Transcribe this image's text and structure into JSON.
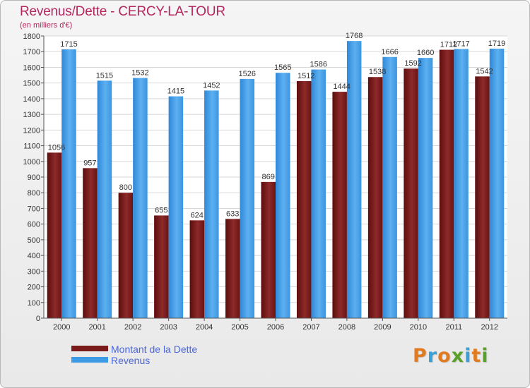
{
  "header": {
    "title": "Revenus/Dette - CERCY-LA-TOUR",
    "subtitle": "(en milliers d'€)"
  },
  "colors": {
    "title": "#b5265e",
    "dette": "#7a1a1a",
    "revenus": "#3d9be6",
    "legend_text": "#4a66d8"
  },
  "chart_data": {
    "type": "bar",
    "categories": [
      "2000",
      "2001",
      "2002",
      "2003",
      "2004",
      "2005",
      "2006",
      "2007",
      "2008",
      "2009",
      "2010",
      "2011",
      "2012"
    ],
    "series": [
      {
        "name": "Montant de la Dette",
        "values": [
          1056,
          957,
          800,
          655,
          624,
          633,
          869,
          1512,
          1444,
          1538,
          1592,
          1712,
          1542
        ]
      },
      {
        "name": "Revenus",
        "values": [
          1715,
          1515,
          1532,
          1415,
          1452,
          1526,
          1565,
          1586,
          1768,
          1666,
          1660,
          1717,
          1719
        ]
      }
    ],
    "title": "Revenus/Dette - CERCY-LA-TOUR",
    "ylabel": "(en milliers d'€)",
    "ylim": [
      0,
      1800
    ],
    "yticks": [
      0,
      100,
      200,
      300,
      400,
      500,
      600,
      700,
      800,
      900,
      1000,
      1100,
      1200,
      1300,
      1400,
      1500,
      1600,
      1700,
      1800
    ],
    "grid": true,
    "legend": "bottom-left"
  },
  "legend": {
    "items": [
      {
        "label": "Montant de la Dette",
        "color": "#7a1a1a"
      },
      {
        "label": "Revenus",
        "color": "#3d9be6"
      }
    ]
  },
  "logo": {
    "letters": [
      "P",
      "r",
      "o",
      "x",
      "i",
      "t",
      "i"
    ],
    "colors": [
      "#e07b20",
      "#3aa0d8",
      "#e07b20",
      "#5aa02c",
      "#3aa0d8",
      "#e07b20",
      "#5aa02c"
    ]
  }
}
